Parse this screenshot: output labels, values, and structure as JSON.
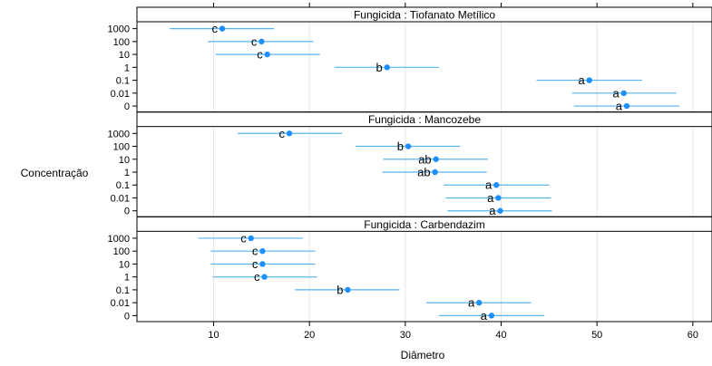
{
  "chart_data": {
    "type": "scatter",
    "xlabel": "Diâmetro",
    "ylabel": "Concentração",
    "xlim": [
      2,
      62
    ],
    "x_ticks": [
      10,
      20,
      30,
      40,
      50,
      60
    ],
    "grid": true,
    "categories": [
      "1000",
      "100",
      "10",
      "1",
      "0.1",
      "0.01",
      "0"
    ],
    "colors": {
      "point": "#1e8fff",
      "line": "#56b4f0",
      "strip_bg": "#ffffff",
      "grid": "#e6e6e6"
    },
    "panels": [
      {
        "strip": "Fungicida : Tiofanato Metílico",
        "rows": [
          {
            "category": "1000",
            "mean": 10.9,
            "lower": 5.4,
            "upper": 16.3,
            "letter": "c"
          },
          {
            "category": "100",
            "mean": 15.0,
            "lower": 9.4,
            "upper": 20.4,
            "letter": "c"
          },
          {
            "category": "10",
            "mean": 15.6,
            "lower": 10.2,
            "upper": 21.1,
            "letter": "c"
          },
          {
            "category": "1",
            "mean": 28.1,
            "lower": 22.6,
            "upper": 33.5,
            "letter": "b"
          },
          {
            "category": "0.1",
            "mean": 49.2,
            "lower": 43.7,
            "upper": 54.7,
            "letter": "a"
          },
          {
            "category": "0.01",
            "mean": 52.8,
            "lower": 47.4,
            "upper": 58.3,
            "letter": "a"
          },
          {
            "category": "0",
            "mean": 53.1,
            "lower": 47.6,
            "upper": 58.6,
            "letter": "a"
          }
        ]
      },
      {
        "strip": "Fungicida : Mancozebe",
        "rows": [
          {
            "category": "1000",
            "mean": 17.9,
            "lower": 12.5,
            "upper": 23.4,
            "letter": "c"
          },
          {
            "category": "100",
            "mean": 30.3,
            "lower": 24.8,
            "upper": 35.7,
            "letter": "b"
          },
          {
            "category": "10",
            "mean": 33.2,
            "lower": 27.7,
            "upper": 38.6,
            "letter": "ab"
          },
          {
            "category": "1",
            "mean": 33.1,
            "lower": 27.6,
            "upper": 38.5,
            "letter": "ab"
          },
          {
            "category": "0.1",
            "mean": 39.5,
            "lower": 34.0,
            "upper": 45.0,
            "letter": "a"
          },
          {
            "category": "0.01",
            "mean": 39.7,
            "lower": 34.2,
            "upper": 45.2,
            "letter": "a"
          },
          {
            "category": "0",
            "mean": 39.9,
            "lower": 34.4,
            "upper": 45.3,
            "letter": "a"
          }
        ]
      },
      {
        "strip": "Fungicida : Carbendazim",
        "rows": [
          {
            "category": "1000",
            "mean": 13.9,
            "lower": 8.4,
            "upper": 19.3,
            "letter": "c"
          },
          {
            "category": "100",
            "mean": 15.1,
            "lower": 9.7,
            "upper": 20.6,
            "letter": "c"
          },
          {
            "category": "10",
            "mean": 15.1,
            "lower": 9.7,
            "upper": 20.6,
            "letter": "c"
          },
          {
            "category": "1",
            "mean": 15.3,
            "lower": 9.9,
            "upper": 20.8,
            "letter": "c"
          },
          {
            "category": "0.1",
            "mean": 24.0,
            "lower": 18.5,
            "upper": 29.4,
            "letter": "b"
          },
          {
            "category": "0.01",
            "mean": 37.7,
            "lower": 32.2,
            "upper": 43.1,
            "letter": "a"
          },
          {
            "category": "0",
            "mean": 39.0,
            "lower": 33.5,
            "upper": 44.5,
            "letter": "a"
          }
        ]
      }
    ]
  }
}
